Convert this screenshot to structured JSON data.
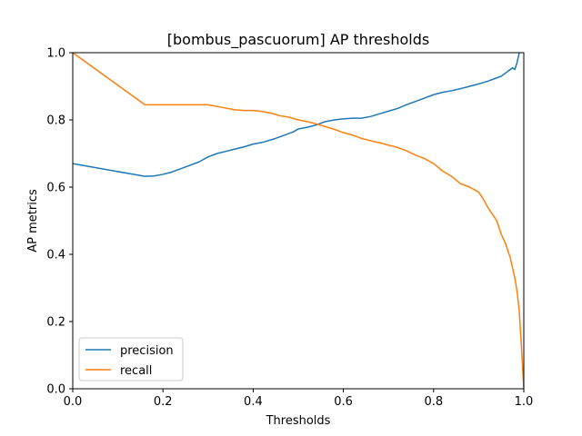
{
  "chart_data": {
    "type": "line",
    "title": "[bombus_pascuorum] AP thresholds",
    "xlabel": "Thresholds",
    "ylabel": "AP metrics",
    "xlim": [
      0,
      1
    ],
    "ylim": [
      0,
      1
    ],
    "xticks": [
      "0.0",
      "0.2",
      "0.4",
      "0.6",
      "0.8",
      "1.0"
    ],
    "yticks": [
      "0.0",
      "0.2",
      "0.4",
      "0.6",
      "0.8",
      "1.0"
    ],
    "grid": false,
    "legend_position": "lower-left",
    "series": [
      {
        "name": "precision",
        "color": "#1f77b4",
        "x": [
          0.0,
          0.16,
          0.18,
          0.2,
          0.22,
          0.25,
          0.28,
          0.3,
          0.32,
          0.35,
          0.38,
          0.4,
          0.42,
          0.45,
          0.47,
          0.49,
          0.5,
          0.52,
          0.54,
          0.56,
          0.58,
          0.6,
          0.62,
          0.64,
          0.66,
          0.68,
          0.7,
          0.72,
          0.74,
          0.76,
          0.78,
          0.8,
          0.82,
          0.84,
          0.86,
          0.88,
          0.9,
          0.92,
          0.94,
          0.95,
          0.96,
          0.97,
          0.975,
          0.98,
          0.985,
          0.99
        ],
        "y": [
          0.67,
          0.632,
          0.633,
          0.638,
          0.645,
          0.66,
          0.675,
          0.69,
          0.7,
          0.71,
          0.72,
          0.728,
          0.733,
          0.745,
          0.755,
          0.765,
          0.773,
          0.778,
          0.785,
          0.795,
          0.8,
          0.803,
          0.805,
          0.805,
          0.81,
          0.818,
          0.826,
          0.834,
          0.845,
          0.855,
          0.865,
          0.875,
          0.882,
          0.887,
          0.893,
          0.9,
          0.907,
          0.915,
          0.925,
          0.93,
          0.94,
          0.95,
          0.955,
          0.95,
          0.97,
          1.0
        ]
      },
      {
        "name": "recall",
        "color": "#ff7f0e",
        "x": [
          0.0,
          0.16,
          0.2,
          0.25,
          0.3,
          0.32,
          0.34,
          0.36,
          0.38,
          0.4,
          0.42,
          0.44,
          0.46,
          0.48,
          0.5,
          0.52,
          0.54,
          0.56,
          0.58,
          0.6,
          0.62,
          0.64,
          0.66,
          0.68,
          0.7,
          0.72,
          0.74,
          0.76,
          0.78,
          0.8,
          0.82,
          0.84,
          0.86,
          0.88,
          0.9,
          0.91,
          0.92,
          0.93,
          0.94,
          0.95,
          0.96,
          0.97,
          0.98,
          0.985,
          0.99,
          0.995,
          1.0
        ],
        "y": [
          1.0,
          0.845,
          0.845,
          0.845,
          0.845,
          0.84,
          0.835,
          0.83,
          0.828,
          0.828,
          0.825,
          0.82,
          0.812,
          0.808,
          0.8,
          0.795,
          0.788,
          0.78,
          0.772,
          0.762,
          0.755,
          0.745,
          0.738,
          0.732,
          0.725,
          0.718,
          0.708,
          0.695,
          0.685,
          0.67,
          0.648,
          0.632,
          0.61,
          0.6,
          0.585,
          0.565,
          0.54,
          0.52,
          0.5,
          0.46,
          0.43,
          0.39,
          0.33,
          0.29,
          0.23,
          0.12,
          0.0
        ]
      }
    ]
  }
}
